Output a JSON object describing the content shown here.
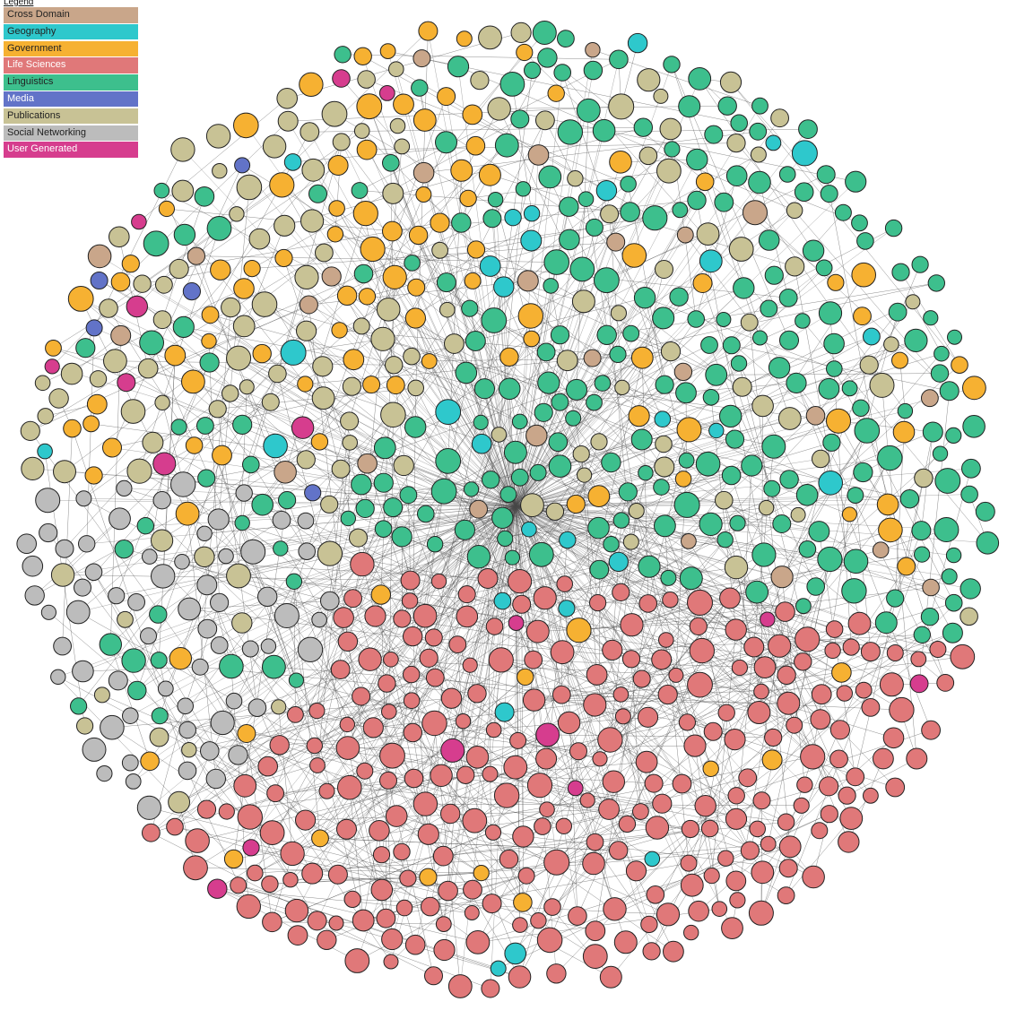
{
  "legend": {
    "title": "Legend",
    "items": [
      {
        "label": "Cross Domain",
        "color": "#c9a68a",
        "text_color": "#222222"
      },
      {
        "label": "Geography",
        "color": "#2ec8cc",
        "text_color": "#222222"
      },
      {
        "label": "Government",
        "color": "#f6b132",
        "text_color": "#222222"
      },
      {
        "label": "Life Sciences",
        "color": "#e07879",
        "text_color": "#ffffff"
      },
      {
        "label": "Linguistics",
        "color": "#3dbf8d",
        "text_color": "#222222"
      },
      {
        "label": "Media",
        "color": "#6273c8",
        "text_color": "#ffffff"
      },
      {
        "label": "Publications",
        "color": "#c8c295",
        "text_color": "#222222"
      },
      {
        "label": "Social Networking",
        "color": "#bcbcbc",
        "text_color": "#222222"
      },
      {
        "label": "User Generated",
        "color": "#d63d8e",
        "text_color": "#ffffff"
      }
    ]
  },
  "graph": {
    "edge_color": "#4a4a4a",
    "node_stroke": "#222222",
    "regions": [
      {
        "category": "Publications",
        "weights": {
          "Publications": 5,
          "Government": 3,
          "Linguistics": 1,
          "User Generated": 1,
          "Geography": 0.5,
          "Cross Domain": 0.5,
          "Media": 0.3
        }
      },
      {
        "category": "Government",
        "weights": {
          "Government": 5,
          "Publications": 2,
          "Linguistics": 1.5,
          "Cross Domain": 0.5,
          "User Generated": 0.3
        }
      },
      {
        "category": "Linguistics",
        "weights": {
          "Linguistics": 6,
          "Publications": 1.5,
          "Government": 1,
          "Geography": 0.6,
          "Cross Domain": 0.4
        }
      },
      {
        "category": "Life Sciences",
        "weights": {
          "Life Sciences": 9,
          "Government": 0.3,
          "User Generated": 0.2,
          "Geography": 0.2
        }
      },
      {
        "category": "Social Networking",
        "weights": {
          "Social Networking": 5,
          "Linguistics": 2,
          "Publications": 1,
          "Government": 0.5
        }
      }
    ]
  }
}
